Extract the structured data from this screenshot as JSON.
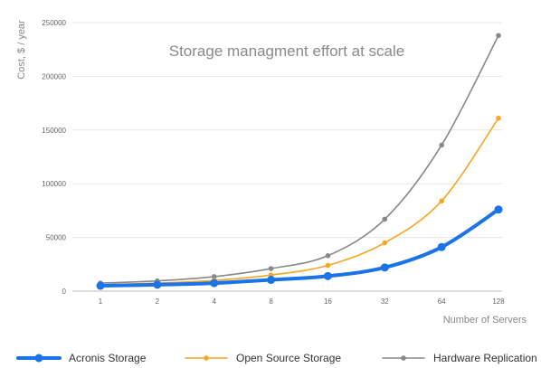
{
  "chart_data": {
    "type": "line",
    "title": "Storage managment effort at scale",
    "xlabel": "Number of Servers",
    "ylabel": "Cost, $ / year",
    "categories": [
      "1",
      "2",
      "4",
      "8",
      "16",
      "32",
      "64",
      "128"
    ],
    "ylim": [
      0,
      250000
    ],
    "yticks": [
      "0",
      "50000",
      "100000",
      "150000",
      "200000",
      "250000"
    ],
    "grid": true,
    "legend_position": "bottom",
    "series": [
      {
        "name": "Acronis Storage",
        "color": "#1a73e8",
        "values": [
          5000,
          6000,
          7500,
          10500,
          14000,
          22000,
          41000,
          76000
        ]
      },
      {
        "name": "Open Source Storage",
        "color": "#f5a623",
        "values": [
          6000,
          7500,
          10000,
          15000,
          24000,
          45000,
          84000,
          161000
        ]
      },
      {
        "name": "Hardware Replication",
        "color": "#888888",
        "values": [
          7500,
          9500,
          13500,
          21000,
          33000,
          67000,
          136000,
          238000
        ]
      }
    ]
  }
}
